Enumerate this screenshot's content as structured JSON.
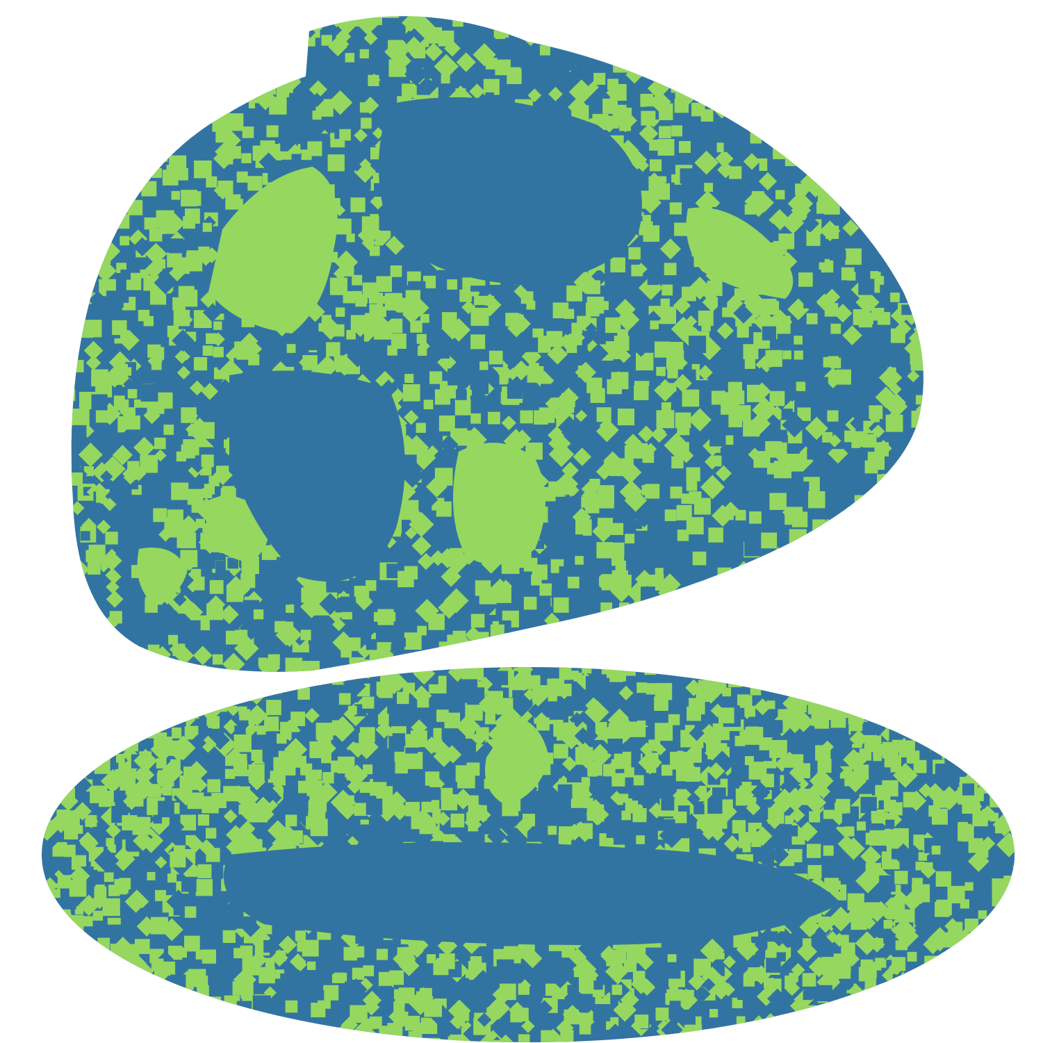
{
  "colors": {
    "background": "#ffffff",
    "blue": "#3274a1",
    "green": "#96d75f"
  }
}
